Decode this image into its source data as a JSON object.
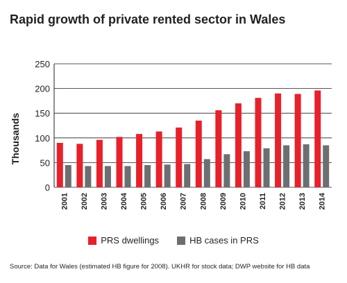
{
  "title": "Rapid growth of private rented sector in Wales",
  "source": "Source: Data for Wales (estimated HB figure for 2008). UKHR for stock data; DWP website for HB data",
  "chart_data": {
    "type": "bar",
    "title": "Rapid growth of private rented sector in Wales",
    "xlabel": "",
    "ylabel": "Thousands",
    "ylim": [
      0,
      250
    ],
    "yticks": [
      0,
      50,
      100,
      150,
      200,
      250
    ],
    "grid": true,
    "legend_position": "bottom",
    "categories": [
      "2001",
      "2002",
      "2003",
      "2004",
      "2005",
      "2006",
      "2007",
      "2008",
      "2009",
      "2010",
      "2011",
      "2012",
      "2013",
      "2014"
    ],
    "series": [
      {
        "name": "PRS dwellings",
        "color": "#e8202a",
        "values": [
          90,
          88,
          96,
          102,
          108,
          113,
          121,
          135,
          156,
          170,
          181,
          190,
          189,
          196
        ]
      },
      {
        "name": "HB cases in PRS",
        "color": "#6d6e71",
        "values": [
          45,
          43,
          43,
          43,
          45,
          46,
          47,
          57,
          67,
          73,
          79,
          85,
          87,
          85
        ]
      }
    ]
  }
}
